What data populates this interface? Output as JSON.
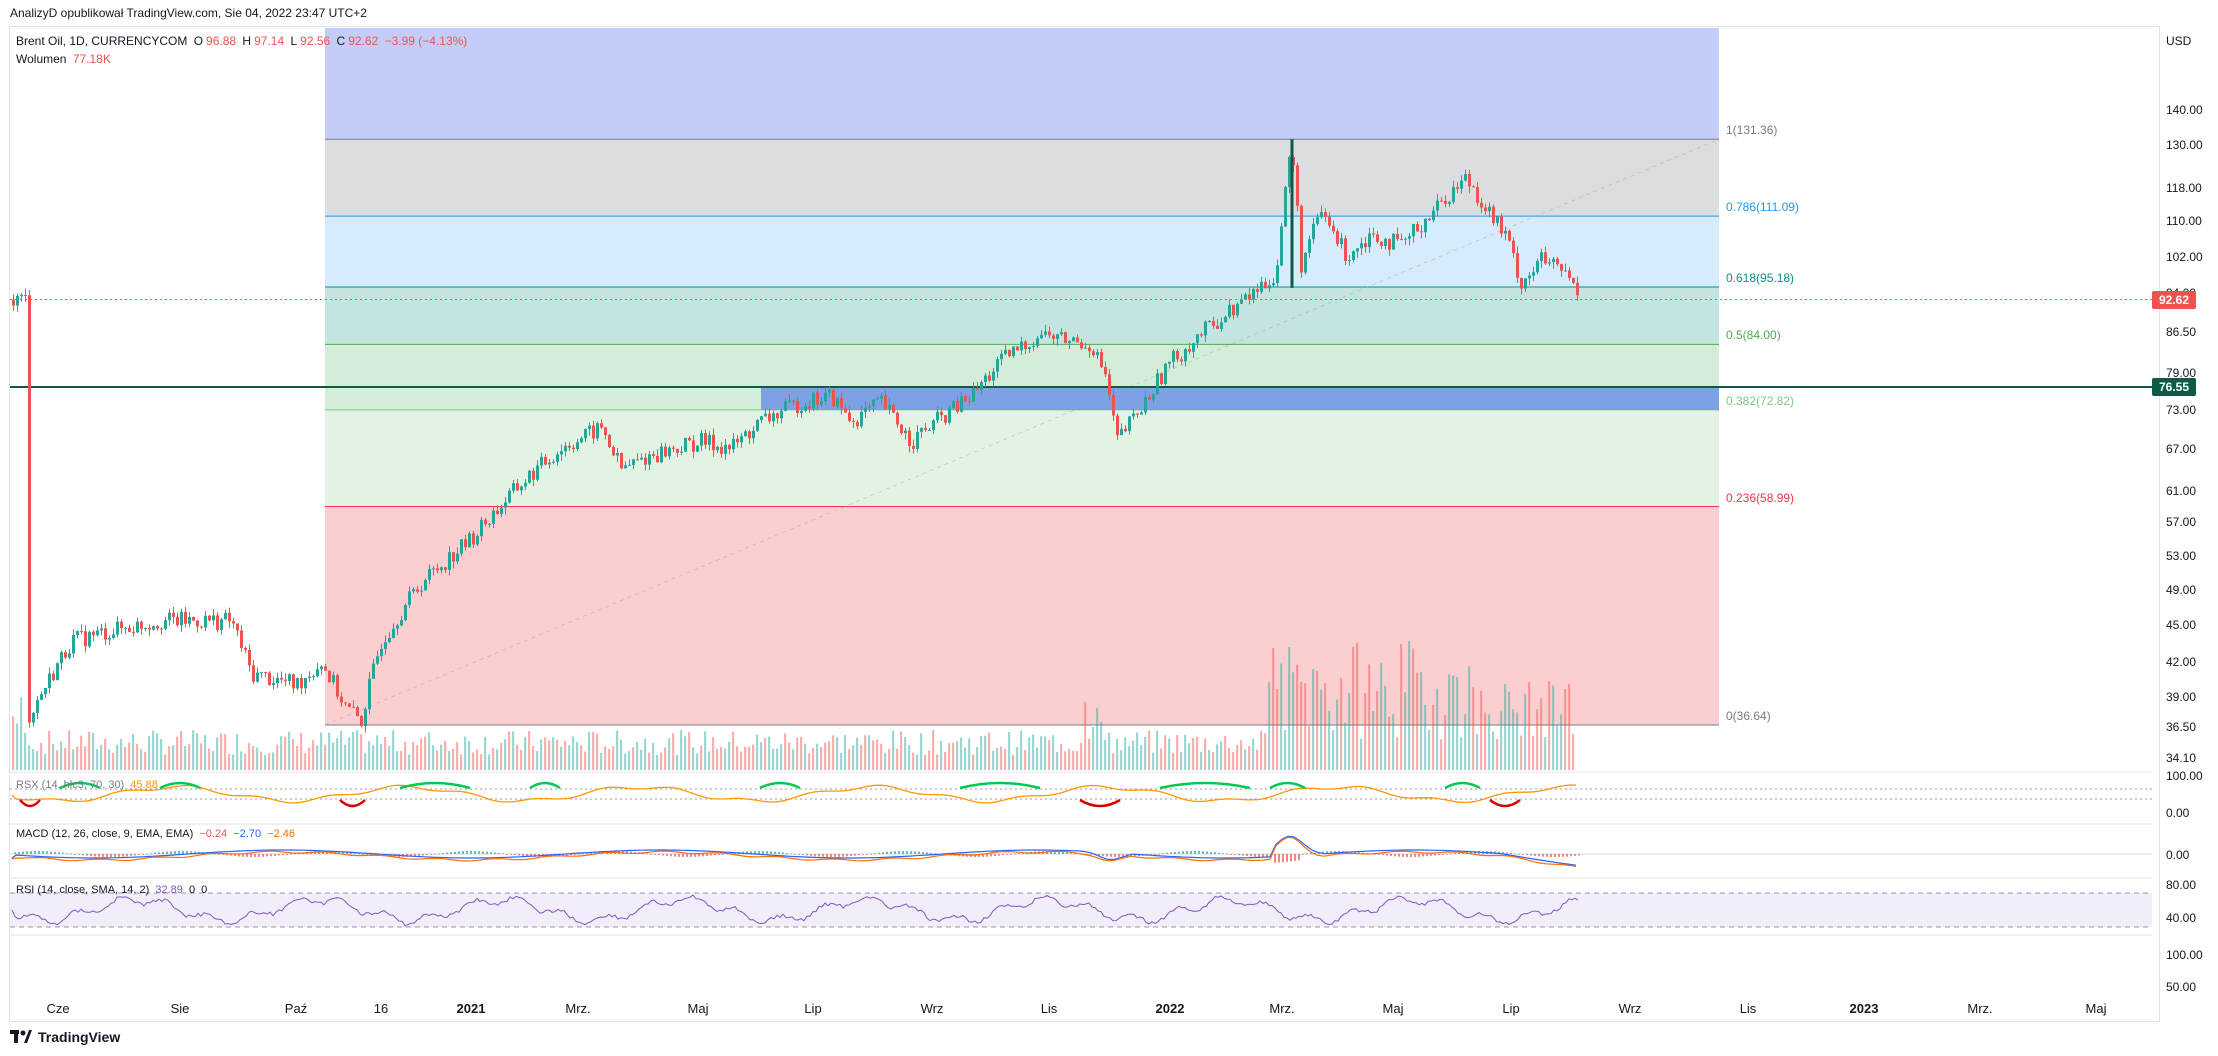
{
  "header": {
    "text": "AnalizyD opublikował TradingView.com, Sie 04, 2022 23:47 UTC+2"
  },
  "symbol": {
    "name": "Brent Oil, 1D, CURRENCYCOM",
    "o_label": "O",
    "o": "96.88",
    "h_label": "H",
    "h": "97.14",
    "l_label": "L",
    "l": "92.56",
    "c_label": "C",
    "c": "92.62",
    "change": "−3.99 (−4.13%)"
  },
  "volume": {
    "label": "Wolumen",
    "value": "77.18K"
  },
  "indicators": {
    "rsx": {
      "label": "RSX (14, hlc3, 70, 30)",
      "value": "45.88"
    },
    "macd": {
      "label": "MACD (12, 26, close, 9, EMA, EMA)",
      "v1": "−0.24",
      "v2": "−2.70",
      "v3": "−2.46"
    },
    "rsi": {
      "label": "RSI (14, close, SMA, 14, 2)",
      "v1": "32.89",
      "v2": "0",
      "v3": "0"
    }
  },
  "currency": "USD",
  "price_axis": [
    "140.00",
    "130.00",
    "118.00",
    "110.00",
    "102.00",
    "94.00",
    "86.50",
    "79.00",
    "73.00",
    "67.00",
    "61.00",
    "57.00",
    "53.00",
    "49.00",
    "45.00",
    "42.00",
    "39.00",
    "36.50",
    "34.10"
  ],
  "rsx_axis": [
    "100.00",
    "0.00"
  ],
  "macd_axis": [
    "0.00"
  ],
  "rsi_axis": [
    "80.00",
    "40.00",
    "100.00",
    "50.00"
  ],
  "price_tags": {
    "last": "92.62",
    "level": "76.55"
  },
  "time_axis": [
    "Cze",
    "Sie",
    "Paź",
    "16",
    "2021",
    "Mrz.",
    "Maj",
    "Lip",
    "Wrz",
    "Lis",
    "2022",
    "Mrz.",
    "Maj",
    "Lip",
    "Wrz",
    "Lis",
    "2023",
    "Mrz.",
    "Maj"
  ],
  "fib_levels": [
    {
      "label": "1(131.36)",
      "color": "#787b86"
    },
    {
      "label": "0.786(111.09)",
      "color": "#2196f3"
    },
    {
      "label": "0.618(95.18)",
      "color": "#009688"
    },
    {
      "label": "0.5(84.00)",
      "color": "#4caf50"
    },
    {
      "label": "0.382(72.82)",
      "color": "#81c784"
    },
    {
      "label": "0.236(58.99)",
      "color": "#f23645"
    },
    {
      "label": "0(36.64)",
      "color": "#787b86"
    }
  ],
  "colors": {
    "up": "#26a69a",
    "down": "#ef5350",
    "accent": "#0f5a47"
  },
  "brand": "TradingView",
  "chart_data": {
    "type": "candlestick",
    "title": "Brent Oil, 1D, CURRENCYCOM",
    "ylabel": "USD",
    "ylim": [
      34.1,
      145
    ],
    "log_scale": true,
    "series": [
      {
        "name": "Brent Oil",
        "dates": [
          "2020-06",
          "2020-08",
          "2020-10",
          "2020-11",
          "2021-01",
          "2021-03",
          "2021-05",
          "2021-07",
          "2021-09",
          "2021-11",
          "2022-01",
          "2022-03",
          "2022-05",
          "2022-07",
          "2022-08"
        ],
        "close": [
          40,
          45,
          40,
          37,
          52,
          67,
          68,
          75,
          72,
          84,
          82,
          131,
          112,
          100,
          92.62
        ]
      }
    ],
    "fibonacci": {
      "levels": [
        1,
        0.786,
        0.618,
        0.5,
        0.382,
        0.236,
        0
      ],
      "prices": [
        131.36,
        111.09,
        95.18,
        84.0,
        72.82,
        58.99,
        36.64
      ]
    },
    "horizontal_line": 76.55,
    "last_price": 92.62
  }
}
